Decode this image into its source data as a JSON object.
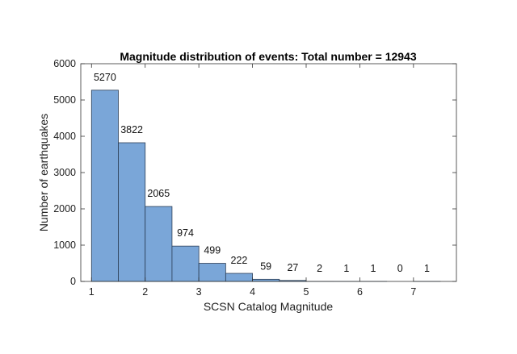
{
  "chart_data": {
    "type": "bar",
    "title": "Magnitude distribution of events: Total number = 12943",
    "xlabel": "SCSN Catalog Magnitude",
    "ylabel": "Number of earthquakes",
    "bin_edges": [
      1,
      1.5,
      2,
      2.5,
      3,
      3.5,
      4,
      4.5,
      5,
      5.5,
      6,
      6.5,
      7,
      7.5
    ],
    "values": [
      5270,
      3822,
      2065,
      974,
      499,
      222,
      59,
      27,
      2,
      1,
      1,
      0,
      1
    ],
    "xlim": [
      0.8,
      7.8
    ],
    "ylim": [
      0,
      6000
    ],
    "xticks": [
      1,
      2,
      3,
      4,
      5,
      6,
      7
    ],
    "yticks": [
      0,
      1000,
      2000,
      3000,
      4000,
      5000,
      6000
    ],
    "grid": false,
    "colors": {
      "bar_fill": "#7aa6d8",
      "bar_edge": "#2b3d55"
    }
  }
}
